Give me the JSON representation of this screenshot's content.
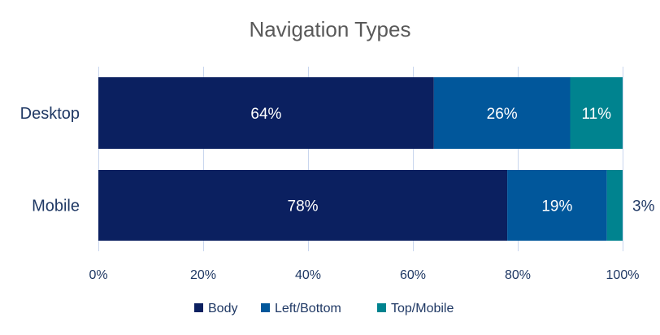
{
  "chart_data": {
    "type": "bar",
    "orientation": "horizontal",
    "stacked": "percent",
    "title": "Navigation Types",
    "categories": [
      "Desktop",
      "Mobile"
    ],
    "series": [
      {
        "name": "Body",
        "values": [
          64,
          78
        ],
        "labels": [
          "64%",
          "78%"
        ],
        "color": "#0B2060"
      },
      {
        "name": "Left/Bottom",
        "values": [
          26,
          19
        ],
        "labels": [
          "26%",
          "19%"
        ],
        "color": "#01579B"
      },
      {
        "name": "Top/Mobile",
        "values": [
          11,
          3
        ],
        "labels": [
          "11%",
          "3%"
        ],
        "color": "#00838F"
      }
    ],
    "xlim": [
      0,
      100
    ],
    "x_ticks": [
      0,
      20,
      40,
      60,
      80,
      100
    ],
    "x_tick_labels": [
      "0%",
      "20%",
      "40%",
      "60%",
      "80%",
      "100%"
    ],
    "grid": true,
    "legend": "bottom"
  },
  "colors": {
    "title": "#595959",
    "axis_text": "#1F3864",
    "gridline": "#C9D6EE",
    "label_on_bar": "#FFFFFF",
    "label_outside": "#1F3864"
  }
}
